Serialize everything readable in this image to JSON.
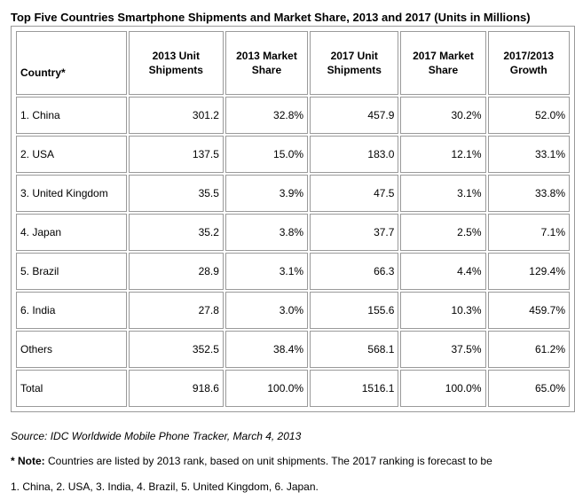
{
  "title": "Top Five Countries Smartphone Shipments and Market Share, 2013 and 2017 (Units in Millions)",
  "source": "Source: IDC Worldwide Mobile Phone Tracker, March 4, 2013",
  "note_label": "* Note:",
  "note_text": " Countries are listed by 2013 rank, based on unit shipments. The 2017 ranking is forecast to be",
  "note_text2": "1. China, 2. USA, 3. India, 4. Brazil, 5. United Kingdom, 6. Japan.",
  "chart_data": {
    "type": "table",
    "title": "Top Five Countries Smartphone Shipments and Market Share, 2013 and 2017 (Units in Millions)",
    "columns": [
      "Country*",
      "2013 Unit Shipments",
      "2013 Market Share",
      "2017 Unit Shipments",
      "2017 Market Share",
      "2017/2013 Growth"
    ],
    "rows": [
      [
        "1. China",
        "301.2",
        "32.8%",
        "457.9",
        "30.2%",
        "52.0%"
      ],
      [
        "2. USA",
        "137.5",
        "15.0%",
        "183.0",
        "12.1%",
        "33.1%"
      ],
      [
        "3. United Kingdom",
        "35.5",
        "3.9%",
        "47.5",
        "3.1%",
        "33.8%"
      ],
      [
        "4. Japan",
        "35.2",
        "3.8%",
        "37.7",
        "2.5%",
        "7.1%"
      ],
      [
        "5. Brazil",
        "28.9",
        "3.1%",
        "66.3",
        "4.4%",
        "129.4%"
      ],
      [
        "6. India",
        "27.8",
        "3.0%",
        "155.6",
        "10.3%",
        "459.7%"
      ],
      [
        "Others",
        "352.5",
        "38.4%",
        "568.1",
        "37.5%",
        "61.2%"
      ],
      [
        "Total",
        "918.6",
        "100.0%",
        "1516.1",
        "100.0%",
        "65.0%"
      ]
    ]
  }
}
